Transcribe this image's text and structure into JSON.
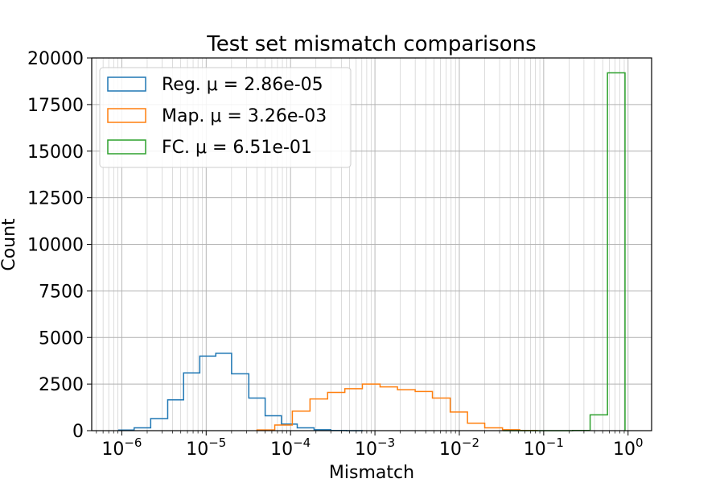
{
  "chart_data": {
    "type": "histogram",
    "title": "Test set mismatch comparisons",
    "xlabel": "Mismatch",
    "ylabel": "Count",
    "x_scale": "log",
    "xlim": [
      4.4e-07,
      1.9
    ],
    "ylim": [
      0,
      20000
    ],
    "grid": "major and minor",
    "legend_position": "top-left",
    "x_ticks": [
      {
        "value": 1e-06,
        "base": "10",
        "exp": "−6"
      },
      {
        "value": 1e-05,
        "base": "10",
        "exp": "−5"
      },
      {
        "value": 0.0001,
        "base": "10",
        "exp": "−4"
      },
      {
        "value": 0.001,
        "base": "10",
        "exp": "−3"
      },
      {
        "value": 0.01,
        "base": "10",
        "exp": "−2"
      },
      {
        "value": 0.1,
        "base": "10",
        "exp": "−1"
      },
      {
        "value": 1,
        "base": "10",
        "exp": "0"
      }
    ],
    "y_ticks": [
      {
        "value": 0,
        "label": "0"
      },
      {
        "value": 2500,
        "label": "2500"
      },
      {
        "value": 5000,
        "label": "5000"
      },
      {
        "value": 7500,
        "label": "7500"
      },
      {
        "value": 10000,
        "label": "10000"
      },
      {
        "value": 12500,
        "label": "12500"
      },
      {
        "value": 15000,
        "label": "15000"
      },
      {
        "value": 17500,
        "label": "17500"
      },
      {
        "value": 20000,
        "label": "20000"
      }
    ],
    "series": [
      {
        "name": "Reg.",
        "mu_label": "μ = 2.86e-05",
        "color": "#1f77b4",
        "bin_edges": [
          9.2e-07,
          1.4e-06,
          2.2e-06,
          3.5e-06,
          5.4e-06,
          8.4e-06,
          1.3e-05,
          2e-05,
          3.2e-05,
          5e-05,
          7.8e-05,
          0.00012,
          0.00019,
          0.0003,
          0.00046,
          0.00072
        ],
        "counts": [
          30,
          150,
          650,
          1650,
          3100,
          4000,
          4150,
          3050,
          1750,
          800,
          350,
          150,
          50,
          10,
          0
        ]
      },
      {
        "name": "Map.",
        "mu_label": "μ = 3.26e-03",
        "color": "#ff7f0e",
        "bin_edges": [
          4e-05,
          6.5e-05,
          0.000105,
          0.00017,
          0.000275,
          0.00044,
          0.00071,
          0.00115,
          0.00185,
          0.003,
          0.0048,
          0.0078,
          0.0125,
          0.02,
          0.0325,
          0.052,
          0.084
        ],
        "counts": [
          40,
          300,
          1050,
          1700,
          2050,
          2250,
          2500,
          2350,
          2200,
          2100,
          1750,
          1000,
          400,
          150,
          50,
          10
        ]
      },
      {
        "name": "FC.",
        "mu_label": "μ = 6.51e-01",
        "color": "#2ca02c",
        "bin_edges": [
          0.033,
          0.053,
          0.085,
          0.137,
          0.22,
          0.355,
          0.57,
          0.92
        ],
        "counts": [
          0,
          0,
          0,
          0,
          10,
          850,
          19200
        ]
      }
    ]
  }
}
